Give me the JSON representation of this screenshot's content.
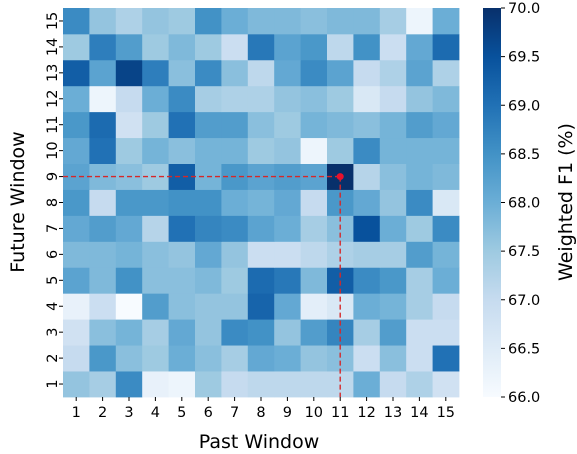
{
  "chart_data": {
    "type": "heatmap",
    "title": "",
    "xlabel": "Past Window",
    "ylabel": "Future Window",
    "x": [
      "1",
      "2",
      "3",
      "4",
      "5",
      "6",
      "7",
      "8",
      "9",
      "10",
      "11",
      "12",
      "13",
      "14",
      "15"
    ],
    "y": [
      "1",
      "2",
      "3",
      "4",
      "5",
      "6",
      "7",
      "8",
      "9",
      "10",
      "11",
      "12",
      "13",
      "14",
      "15"
    ],
    "values": [
      [
        67.6,
        67.4,
        68.6,
        66.3,
        66.2,
        67.5,
        67.0,
        67.1,
        67.1,
        67.1,
        67.1,
        68.0,
        67.0,
        67.3,
        66.8
      ],
      [
        67.0,
        68.4,
        67.7,
        67.5,
        68.0,
        67.7,
        67.4,
        68.1,
        68.0,
        67.6,
        67.7,
        66.9,
        67.7,
        66.9,
        69.0
      ],
      [
        66.8,
        67.7,
        67.9,
        67.4,
        68.1,
        67.6,
        68.6,
        68.5,
        67.6,
        68.3,
        68.7,
        67.4,
        68.3,
        66.9,
        66.9
      ],
      [
        66.3,
        66.9,
        66.0,
        68.3,
        67.7,
        67.6,
        67.6,
        69.2,
        68.1,
        66.4,
        66.6,
        68.0,
        67.9,
        67.4,
        67.0
      ],
      [
        68.2,
        67.8,
        68.5,
        67.7,
        67.7,
        67.8,
        67.5,
        69.1,
        68.9,
        67.8,
        69.3,
        68.6,
        68.4,
        67.4,
        68.0
      ],
      [
        67.8,
        67.8,
        67.9,
        67.7,
        67.6,
        68.1,
        67.6,
        66.9,
        66.9,
        67.1,
        67.3,
        67.4,
        67.4,
        68.3,
        67.9
      ],
      [
        68.1,
        68.3,
        68.1,
        67.2,
        69.0,
        68.7,
        68.6,
        68.2,
        68.0,
        67.4,
        67.7,
        69.5,
        68.0,
        67.5,
        68.6
      ],
      [
        68.4,
        67.0,
        68.4,
        68.4,
        68.5,
        68.5,
        68.0,
        67.9,
        68.1,
        67.0,
        68.4,
        68.1,
        67.6,
        68.6,
        66.6
      ],
      [
        68.2,
        67.8,
        67.7,
        67.5,
        69.3,
        67.9,
        68.4,
        68.2,
        68.3,
        68.2,
        70.0,
        67.2,
        67.7,
        67.9,
        67.8
      ],
      [
        68.1,
        69.0,
        67.5,
        67.9,
        67.7,
        67.9,
        67.9,
        67.5,
        67.6,
        66.2,
        67.5,
        68.6,
        67.9,
        67.9,
        67.9
      ],
      [
        68.4,
        69.1,
        66.8,
        67.5,
        69.0,
        68.3,
        68.3,
        67.7,
        67.5,
        67.9,
        67.8,
        67.7,
        67.9,
        68.3,
        68.1
      ],
      [
        68.0,
        66.2,
        67.0,
        68.0,
        68.6,
        67.4,
        67.3,
        67.3,
        67.6,
        67.7,
        67.5,
        66.6,
        67.0,
        67.6,
        67.8
      ],
      [
        69.3,
        68.2,
        69.7,
        68.8,
        67.7,
        68.6,
        67.7,
        67.1,
        68.1,
        68.6,
        68.2,
        67.0,
        67.3,
        68.2,
        67.3
      ],
      [
        67.5,
        68.8,
        68.3,
        67.5,
        67.8,
        67.5,
        66.9,
        68.9,
        68.2,
        68.4,
        67.1,
        68.5,
        66.9,
        68.1,
        69.1
      ],
      [
        68.6,
        67.6,
        67.3,
        67.6,
        67.5,
        68.5,
        68.0,
        67.8,
        67.8,
        67.7,
        67.8,
        67.8,
        67.4,
        66.2,
        68.0
      ]
    ],
    "colorbar": {
      "label": "Weighted F1 (%)",
      "min": 66.0,
      "max": 70.0,
      "ticks": [
        "66.0",
        "66.5",
        "67.0",
        "67.5",
        "68.0",
        "68.5",
        "69.0",
        "69.5",
        "70.0"
      ],
      "colormap": "Blues"
    },
    "highlight": {
      "x": "11",
      "y": "9",
      "marker_color": "#e8112d",
      "line_color": "#d62728"
    },
    "grid": false
  }
}
